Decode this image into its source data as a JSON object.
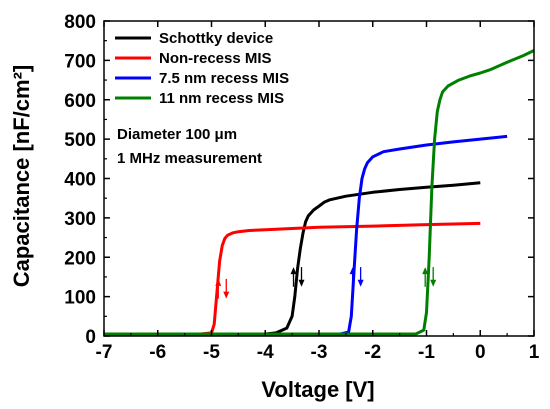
{
  "chart_data": {
    "type": "line",
    "xlabel": "Voltage [V]",
    "ylabel": "Capacitance [nF/cm²]",
    "xlim": [
      -7,
      1
    ],
    "ylim": [
      0,
      800
    ],
    "x_ticks": [
      "-7",
      "-6",
      "-5",
      "-4",
      "-3",
      "-2",
      "-1",
      "0",
      "1"
    ],
    "y_ticks": [
      "0",
      "100",
      "200",
      "300",
      "400",
      "500",
      "600",
      "700",
      "800"
    ],
    "legend_position": "top-left",
    "annotations": [
      "Diameter 100 μm",
      "1 MHz measurement"
    ],
    "grid": false,
    "series": [
      {
        "name": "Schottky device",
        "color": "#000000",
        "x": [
          -7,
          -4.0,
          -3.8,
          -3.6,
          -3.5,
          -3.45,
          -3.4,
          -3.35,
          -3.3,
          -3.25,
          -3.2,
          -3.1,
          -3.0,
          -2.9,
          -2.8,
          -2.5,
          -2.0,
          -1.5,
          -1.0,
          -0.5,
          0
        ],
        "y": [
          5,
          5,
          8,
          20,
          50,
          100,
          170,
          220,
          260,
          290,
          305,
          320,
          330,
          340,
          346,
          355,
          365,
          372,
          378,
          383,
          389
        ]
      },
      {
        "name": "Non-recess MIS",
        "color": "#ff0000",
        "x": [
          -7,
          -5.2,
          -5.0,
          -4.95,
          -4.9,
          -4.85,
          -4.8,
          -4.75,
          -4.7,
          -4.6,
          -4.5,
          -4.3,
          -4.0,
          -3.5,
          -3.0,
          -2.0,
          -1.0,
          0
        ],
        "y": [
          5,
          5,
          8,
          30,
          110,
          190,
          230,
          248,
          256,
          262,
          265,
          268,
          270,
          273,
          276,
          279,
          283,
          286
        ]
      },
      {
        "name": "7.5 nm recess MIS",
        "color": "#0000ff",
        "x": [
          -7,
          -2.6,
          -2.45,
          -2.4,
          -2.35,
          -2.3,
          -2.25,
          -2.2,
          -2.15,
          -2.1,
          -2.0,
          -1.8,
          -1.5,
          -1.0,
          -0.5,
          0,
          0.5
        ],
        "y": [
          5,
          5,
          10,
          50,
          160,
          270,
          350,
          400,
          425,
          440,
          455,
          468,
          475,
          485,
          493,
          500,
          507
        ]
      },
      {
        "name": "11 nm recess MIS",
        "color": "#008000",
        "x": [
          -7,
          -1.2,
          -1.05,
          -1.0,
          -0.95,
          -0.9,
          -0.85,
          -0.8,
          -0.75,
          -0.7,
          -0.6,
          -0.4,
          -0.2,
          0,
          0.2,
          0.5,
          0.8,
          1
        ],
        "y": [
          5,
          5,
          15,
          60,
          200,
          380,
          500,
          570,
          600,
          620,
          635,
          650,
          660,
          668,
          677,
          695,
          712,
          725
        ]
      }
    ]
  }
}
